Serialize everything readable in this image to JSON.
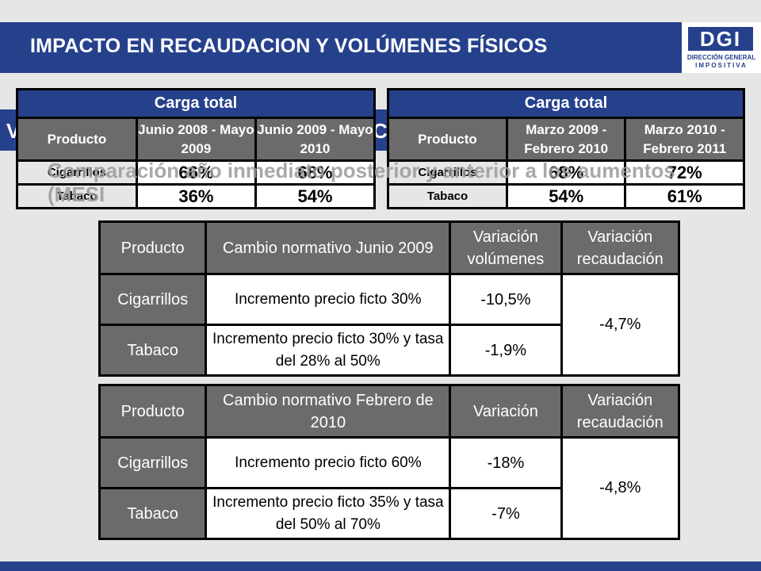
{
  "header": {
    "title": "IMPACTO EN RECAUDACION Y VOLÚMENES FÍSICOS"
  },
  "logo": {
    "mark": "DGI",
    "line1": "DIRECCIÓN GENERAL",
    "line2": "IMPOSITIVA"
  },
  "background_slide": {
    "fragment_left": "V",
    "fragment_right": "CI",
    "overlay_text": "Comparación año inmediato posterior y anterior a los aumentos (MESI"
  },
  "carga_1": {
    "title": "Carga total",
    "col_producto": "Producto",
    "col_period_a": "Junio 2008 - Mayo 2009",
    "col_period_b": "Junio 2009 - Mayo 2010",
    "rows": [
      {
        "producto": "Cigarrillos",
        "a": "66%",
        "b": "68%"
      },
      {
        "producto": "Tabaco",
        "a": "36%",
        "b": "54%"
      }
    ]
  },
  "carga_2": {
    "title": "Carga total",
    "col_producto": "Producto",
    "col_period_a": "Marzo 2009 - Febrero 2010",
    "col_period_b": "Marzo 2010 - Febrero 2011",
    "rows": [
      {
        "producto": "Cigarrillos",
        "a": "68%",
        "b": "72%"
      },
      {
        "producto": "Tabaco",
        "a": "54%",
        "b": "61%"
      }
    ]
  },
  "table_junio": {
    "col_producto": "Producto",
    "col_cambio": "Cambio  normativo Junio 2009",
    "col_variacion": "Variación volúmenes",
    "col_recaudacion": "Variación recaudación",
    "rows": [
      {
        "producto": "Cigarrillos",
        "cambio": "Incremento precio ficto 30%",
        "variacion": "-10,5%"
      },
      {
        "producto": "Tabaco",
        "cambio": "Incremento precio ficto 30% y tasa del 28% al 50%",
        "variacion": "-1,9%"
      }
    ],
    "recaudacion": "-4,7%"
  },
  "table_febrero": {
    "col_producto": "Producto",
    "col_cambio": "Cambio  normativo Febrero de 2010",
    "col_variacion": "Variación",
    "col_recaudacion": "Variación recaudación",
    "rows": [
      {
        "producto": "Cigarrillos",
        "cambio": "Incremento precio ficto 60%",
        "variacion": "-18%"
      },
      {
        "producto": "Tabaco",
        "cambio": "Incremento precio ficto 35% y tasa del 50% al 70%",
        "variacion": "-7%"
      }
    ],
    "recaudacion": "-4,8%"
  }
}
